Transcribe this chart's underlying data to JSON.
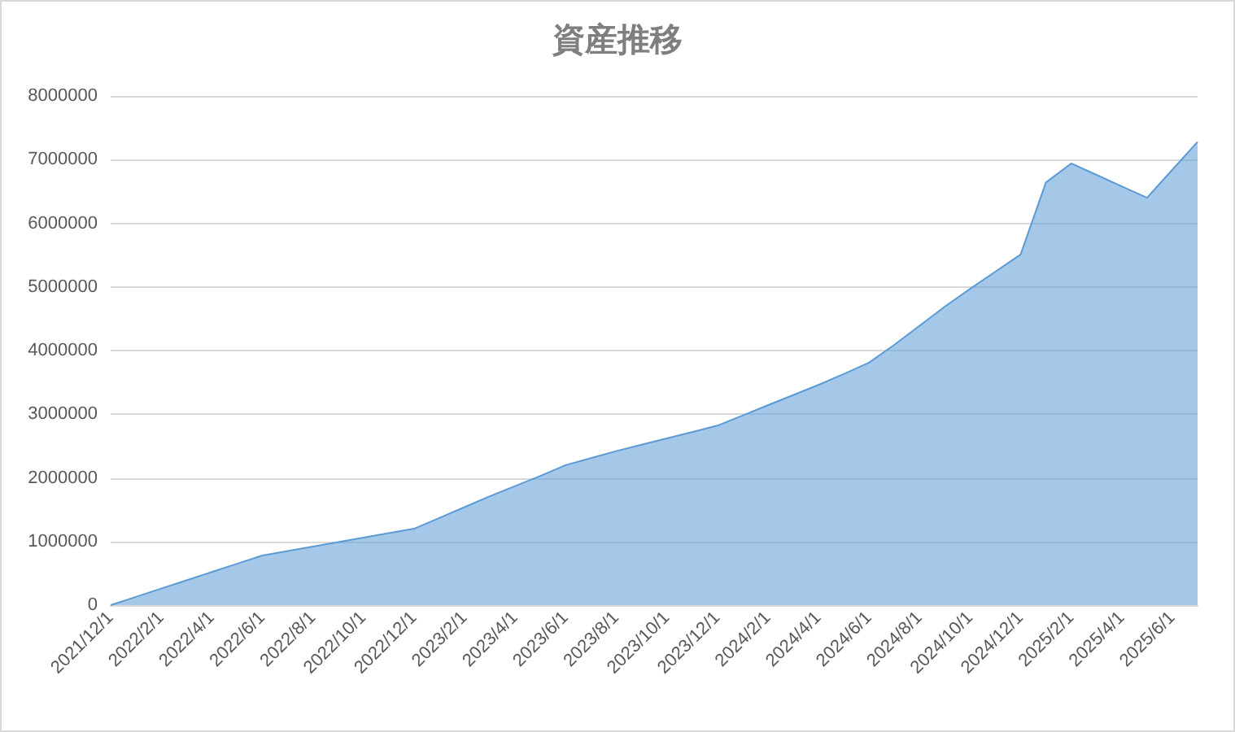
{
  "chart_data": {
    "type": "area",
    "title": "資産推移",
    "categories": [
      "2021/12/1",
      null,
      "2022/2/1",
      null,
      "2022/4/1",
      null,
      "2022/6/1",
      null,
      "2022/8/1",
      null,
      "2022/10/1",
      null,
      "2022/12/1",
      null,
      "2023/2/1",
      null,
      "2023/4/1",
      null,
      "2023/6/1",
      null,
      "2023/8/1",
      null,
      "2023/10/1",
      null,
      "2023/12/1",
      null,
      "2024/2/1",
      null,
      "2024/4/1",
      null,
      "2024/6/1",
      null,
      "2024/8/1",
      null,
      "2024/10/1",
      null,
      "2024/12/1",
      null,
      "2025/2/1",
      null,
      "2025/4/1",
      null,
      "2025/6/1",
      null
    ],
    "series": [
      {
        "color": "#5b9bd5",
        "values": [
          0,
          130000,
          260000,
          390000,
          520000,
          650000,
          780000,
          850000,
          920000,
          990000,
          1060000,
          1130000,
          1200000,
          1370000,
          1540000,
          1710000,
          1870000,
          2030000,
          2200000,
          2310000,
          2420000,
          2520000,
          2620000,
          2720000,
          2820000,
          2980000,
          3140000,
          3300000,
          3460000,
          3630000,
          3810000,
          4090000,
          4390000,
          4690000,
          4970000,
          5240000,
          5510000,
          6640000,
          6940000,
          6760000,
          6580000,
          6400000,
          6840000,
          7280000
        ]
      }
    ],
    "ylim": [
      0,
      8000000
    ],
    "yticks": [
      0,
      1000000,
      2000000,
      3000000,
      4000000,
      5000000,
      6000000,
      7000000,
      8000000
    ],
    "grid": "y"
  }
}
